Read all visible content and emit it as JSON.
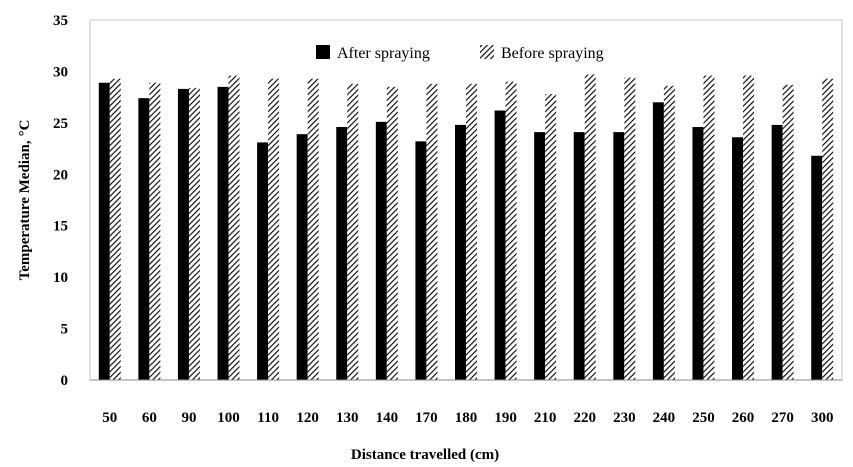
{
  "chart_data": {
    "type": "bar",
    "xlabel": "Distance travelled (cm)",
    "ylabel": "Temperature Median,",
    "ylabel_unit": "°C",
    "ylim": [
      0,
      35
    ],
    "yticks": [
      0,
      5,
      10,
      15,
      20,
      25,
      30,
      35
    ],
    "grid": false,
    "legend_position": "top-center",
    "categories": [
      "50",
      "60",
      "90",
      "100",
      "110",
      "120",
      "130",
      "140",
      "170",
      "180",
      "190",
      "210",
      "220",
      "230",
      "240",
      "250",
      "260",
      "270",
      "300"
    ],
    "series": [
      {
        "name": "After spraying",
        "fill": "solid",
        "color": "#000000",
        "values": [
          28.9,
          27.4,
          28.3,
          28.5,
          23.1,
          23.9,
          24.6,
          25.1,
          23.2,
          24.8,
          26.2,
          24.1,
          24.1,
          24.1,
          27.0,
          24.6,
          23.6,
          24.8,
          21.8
        ]
      },
      {
        "name": "Before spraying",
        "fill": "diagonal-hatch",
        "color": "#000000",
        "values": [
          29.3,
          28.9,
          28.4,
          29.6,
          29.3,
          29.3,
          28.8,
          28.5,
          28.8,
          28.8,
          29.0,
          27.8,
          29.7,
          29.4,
          28.6,
          29.6,
          29.6,
          28.7,
          29.3
        ]
      }
    ]
  }
}
